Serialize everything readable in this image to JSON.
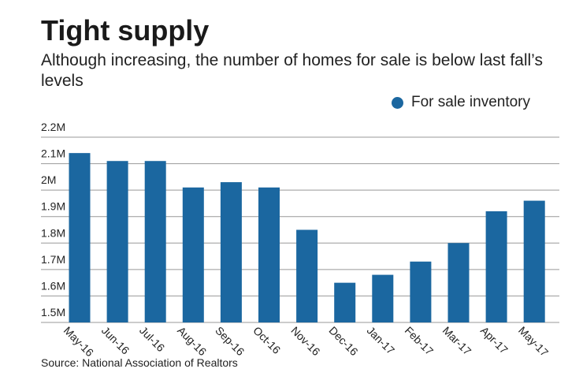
{
  "chart_data": {
    "type": "bar",
    "title": "Tight supply",
    "subtitle": "Although increasing, the number of homes for sale is below last fall’s levels",
    "legend": {
      "label": "For sale inventory",
      "position": "top-right"
    },
    "categories": [
      "May-16",
      "Jun-16",
      "Jul-16",
      "Aug-16",
      "Sep-16",
      "Oct-16",
      "Nov-16",
      "Dec-16",
      "Jan-17",
      "Feb-17",
      "Mar-17",
      "Apr-17",
      "May-17"
    ],
    "series": [
      {
        "name": "For sale inventory",
        "values": [
          2.14,
          2.11,
          2.11,
          2.01,
          2.03,
          2.01,
          1.85,
          1.65,
          1.68,
          1.73,
          1.8,
          1.92,
          1.96
        ]
      }
    ],
    "y_unit": "M",
    "yticks": [
      1.5,
      1.6,
      1.7,
      1.8,
      1.9,
      2,
      2.1,
      2.2
    ],
    "ytick_labels": [
      "1.5M",
      "1.6M",
      "1.7M",
      "1.8M",
      "1.9M",
      "2M",
      "2.1M",
      "2.2M"
    ],
    "ylim": [
      1.5,
      2.2
    ],
    "grid": true,
    "xlabel": "",
    "ylabel": "",
    "source": "Source: National Association of Realtors",
    "colors": {
      "bar": "#1b67a0",
      "grid": "#999999"
    }
  }
}
